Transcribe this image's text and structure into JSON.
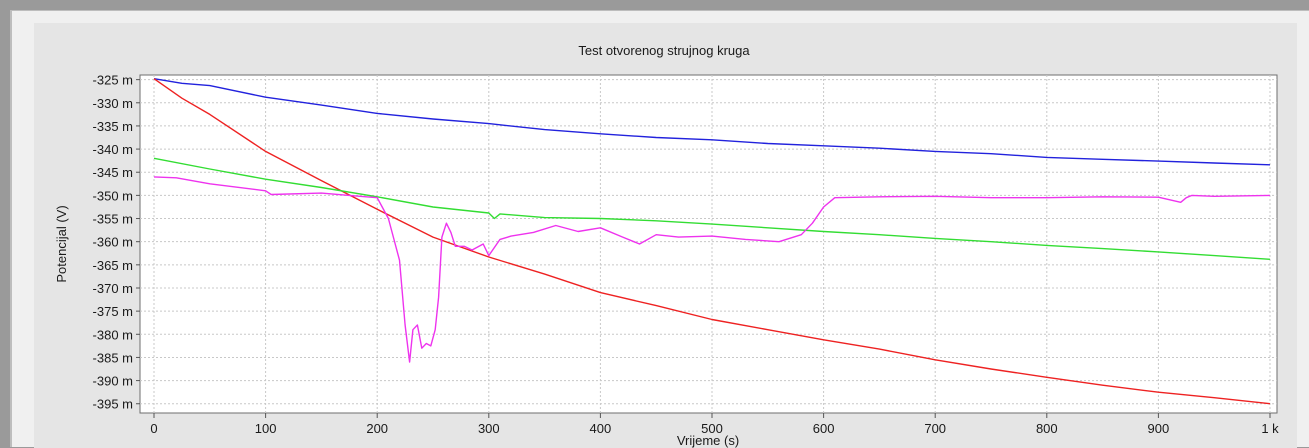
{
  "chart_data": {
    "type": "line",
    "title": "Test otvorenog strujnog kruga",
    "xlabel": "Vrijeme (s)",
    "ylabel": "Potencijal (V)",
    "xlim": [
      0,
      1000
    ],
    "ylim": [
      -0.397,
      -0.324
    ],
    "grid": true,
    "x_ticks": [
      {
        "value": 0,
        "label": "0"
      },
      {
        "value": 100,
        "label": "100"
      },
      {
        "value": 200,
        "label": "200"
      },
      {
        "value": 300,
        "label": "300"
      },
      {
        "value": 400,
        "label": "400"
      },
      {
        "value": 500,
        "label": "500"
      },
      {
        "value": 600,
        "label": "600"
      },
      {
        "value": 700,
        "label": "700"
      },
      {
        "value": 800,
        "label": "800"
      },
      {
        "value": 900,
        "label": "900"
      },
      {
        "value": 1000,
        "label": "1 k"
      }
    ],
    "y_ticks": [
      {
        "value": -0.325,
        "label": "-325 m"
      },
      {
        "value": -0.33,
        "label": "-330 m"
      },
      {
        "value": -0.335,
        "label": "-335 m"
      },
      {
        "value": -0.34,
        "label": "-340 m"
      },
      {
        "value": -0.345,
        "label": "-345 m"
      },
      {
        "value": -0.35,
        "label": "-350 m"
      },
      {
        "value": -0.355,
        "label": "-355 m"
      },
      {
        "value": -0.36,
        "label": "-360 m"
      },
      {
        "value": -0.365,
        "label": "-365 m"
      },
      {
        "value": -0.37,
        "label": "-370 m"
      },
      {
        "value": -0.375,
        "label": "-375 m"
      },
      {
        "value": -0.38,
        "label": "-380 m"
      },
      {
        "value": -0.385,
        "label": "-385 m"
      },
      {
        "value": -0.39,
        "label": "-390 m"
      },
      {
        "value": -0.395,
        "label": "-395 m"
      }
    ],
    "series": [
      {
        "color": "#2222dd",
        "x": [
          0,
          25,
          50,
          100,
          150,
          200,
          250,
          300,
          350,
          400,
          450,
          500,
          550,
          600,
          650,
          700,
          750,
          800,
          850,
          900,
          950,
          1000
        ],
        "y": [
          -0.3248,
          -0.3258,
          -0.3263,
          -0.3288,
          -0.3305,
          -0.3323,
          -0.3335,
          -0.3345,
          -0.3358,
          -0.3367,
          -0.3375,
          -0.338,
          -0.3388,
          -0.3393,
          -0.3398,
          -0.3405,
          -0.341,
          -0.3418,
          -0.3422,
          -0.3426,
          -0.343,
          -0.3434
        ]
      },
      {
        "color": "#ee2222",
        "x": [
          0,
          25,
          50,
          100,
          150,
          200,
          250,
          300,
          350,
          400,
          450,
          500,
          550,
          600,
          650,
          700,
          750,
          800,
          850,
          900,
          950,
          1000
        ],
        "y": [
          -0.3248,
          -0.329,
          -0.3325,
          -0.3405,
          -0.3468,
          -0.353,
          -0.359,
          -0.3633,
          -0.367,
          -0.371,
          -0.3738,
          -0.3768,
          -0.379,
          -0.3812,
          -0.3832,
          -0.3855,
          -0.3875,
          -0.3893,
          -0.391,
          -0.3925,
          -0.3937,
          -0.395
        ]
      },
      {
        "color": "#33dd33",
        "x": [
          0,
          50,
          100,
          150,
          200,
          250,
          300,
          305,
          310,
          350,
          400,
          450,
          500,
          550,
          600,
          650,
          700,
          750,
          800,
          850,
          900,
          950,
          1000
        ],
        "y": [
          -0.342,
          -0.3443,
          -0.3465,
          -0.3483,
          -0.3503,
          -0.3525,
          -0.3538,
          -0.355,
          -0.354,
          -0.3548,
          -0.355,
          -0.3555,
          -0.3562,
          -0.357,
          -0.3578,
          -0.3585,
          -0.3593,
          -0.36,
          -0.3608,
          -0.3615,
          -0.3622,
          -0.363,
          -0.3638
        ]
      },
      {
        "color": "#ee33ee",
        "x": [
          0,
          20,
          50,
          100,
          105,
          150,
          175,
          200,
          210,
          220,
          225,
          229,
          232,
          236,
          240,
          244,
          248,
          252,
          255,
          258,
          262,
          266,
          270,
          278,
          285,
          295,
          300,
          310,
          320,
          340,
          360,
          380,
          400,
          420,
          435,
          450,
          470,
          500,
          530,
          560,
          580,
          590,
          600,
          610,
          650,
          700,
          750,
          800,
          850,
          900,
          920,
          925,
          930,
          950,
          1000
        ],
        "y": [
          -0.346,
          -0.3462,
          -0.3475,
          -0.349,
          -0.3498,
          -0.3495,
          -0.35,
          -0.3505,
          -0.355,
          -0.364,
          -0.378,
          -0.386,
          -0.379,
          -0.378,
          -0.383,
          -0.382,
          -0.3825,
          -0.379,
          -0.372,
          -0.359,
          -0.356,
          -0.358,
          -0.361,
          -0.361,
          -0.3618,
          -0.3605,
          -0.363,
          -0.3595,
          -0.3588,
          -0.358,
          -0.3565,
          -0.3578,
          -0.357,
          -0.359,
          -0.3605,
          -0.3585,
          -0.359,
          -0.3588,
          -0.3595,
          -0.36,
          -0.3585,
          -0.356,
          -0.3525,
          -0.3505,
          -0.3503,
          -0.3502,
          -0.3505,
          -0.3505,
          -0.3503,
          -0.3504,
          -0.3515,
          -0.3505,
          -0.35,
          -0.3502,
          -0.35
        ]
      }
    ]
  }
}
